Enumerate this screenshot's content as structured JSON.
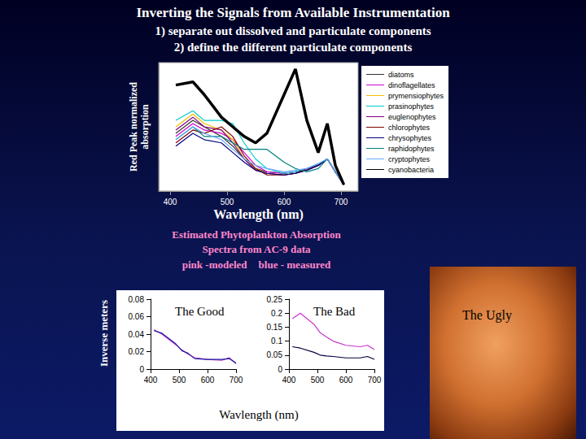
{
  "slide": {
    "title": "Inverting the Signals from Available Instrumentation",
    "lines": [
      "1) separate out dissolved and particulate components",
      "2) define the different particulate components"
    ],
    "caption": [
      "Estimated Phytoplankton Absorption",
      "Spectra from AC-9 data"
    ],
    "legend_note": [
      "pink -modeled",
      "blue - measured"
    ],
    "y_label": "Inverse meters",
    "x_label": "Wavlength (nm)",
    "photo_label": "The Ugly"
  },
  "chart_data": [
    {
      "type": "line",
      "x_label": "Wavlength (nm)",
      "y_label": "Red Peak normalized absorption",
      "x": [
        410,
        440,
        460,
        490,
        510,
        530,
        550,
        570,
        600,
        620,
        640,
        660,
        676,
        690,
        705
      ],
      "xlim": [
        380,
        730
      ],
      "xticks": [
        400,
        500,
        600,
        700
      ],
      "ylim": [
        0,
        4
      ],
      "tick_labels": "x",
      "grid": false,
      "legend": "right",
      "series": [
        {
          "name": "diatoms",
          "color": "#333333",
          "values": [
            1.8,
            2.2,
            2.0,
            1.7,
            1.4,
            1.0,
            0.7,
            0.6,
            0.55,
            0.6,
            0.65,
            0.8,
            1.0,
            0.6,
            0.2
          ]
        },
        {
          "name": "dinoflagellates",
          "color": "#cc00cc",
          "values": [
            1.7,
            2.1,
            1.9,
            1.8,
            1.6,
            1.2,
            0.8,
            0.6,
            0.55,
            0.6,
            0.7,
            0.8,
            1.0,
            0.6,
            0.2
          ]
        },
        {
          "name": "prymensiophytes",
          "color": "#f0c000",
          "values": [
            2.0,
            2.4,
            2.1,
            1.9,
            1.6,
            1.0,
            0.7,
            0.55,
            0.5,
            0.55,
            0.65,
            0.8,
            1.0,
            0.6,
            0.2
          ]
        },
        {
          "name": "prasinophytes",
          "color": "#00cccc",
          "values": [
            2.2,
            2.5,
            2.2,
            2.2,
            2.1,
            1.5,
            1.0,
            0.7,
            0.55,
            0.6,
            0.7,
            0.85,
            1.0,
            0.6,
            0.2
          ]
        },
        {
          "name": "euglenophytes",
          "color": "#800080",
          "values": [
            1.9,
            2.3,
            2.0,
            1.9,
            1.5,
            1.0,
            0.65,
            0.55,
            0.5,
            0.55,
            0.65,
            0.8,
            1.0,
            0.6,
            0.2
          ]
        },
        {
          "name": "chlorophytes",
          "color": "#800000",
          "values": [
            1.5,
            1.9,
            1.8,
            2.0,
            1.7,
            1.1,
            0.7,
            0.5,
            0.5,
            0.55,
            0.7,
            0.8,
            1.0,
            0.6,
            0.2
          ]
        },
        {
          "name": "chrysophytes",
          "color": "#000080",
          "values": [
            1.4,
            1.8,
            1.6,
            1.5,
            1.2,
            0.9,
            0.65,
            0.55,
            0.5,
            0.55,
            0.65,
            0.8,
            1.0,
            0.6,
            0.2
          ]
        },
        {
          "name": "raphidophytes",
          "color": "#008080",
          "values": [
            1.6,
            2.0,
            1.7,
            1.7,
            1.5,
            1.3,
            1.3,
            1.3,
            0.9,
            0.7,
            0.6,
            0.7,
            1.0,
            0.6,
            0.2
          ]
        },
        {
          "name": "cryptophytes",
          "color": "#66aaff",
          "values": [
            1.6,
            2.0,
            1.8,
            1.6,
            1.3,
            1.0,
            0.8,
            0.7,
            0.6,
            0.65,
            0.7,
            0.85,
            1.0,
            0.6,
            0.2
          ]
        },
        {
          "name": "cyanobacteria",
          "color": "#000000",
          "line_style": "bold",
          "values": [
            3.3,
            3.4,
            3.0,
            2.3,
            2.0,
            1.7,
            1.5,
            1.8,
            3.0,
            3.8,
            2.2,
            1.2,
            2.1,
            0.8,
            0.2
          ]
        }
      ]
    },
    {
      "type": "line",
      "title": "The Good",
      "x": [
        412,
        440,
        488,
        510,
        532,
        555,
        600,
        650,
        676,
        700
      ],
      "xlim": [
        400,
        700
      ],
      "xticks": [
        400,
        500,
        600,
        700
      ],
      "ylim": [
        0,
        0.08
      ],
      "yticks": [
        0,
        0.02,
        0.04,
        0.06,
        0.08
      ],
      "grid": false,
      "series": [
        {
          "color": "#cc33cc",
          "values": [
            0.045,
            0.04,
            0.028,
            0.022,
            0.017,
            0.013,
            0.011,
            0.01,
            0.013,
            0.006
          ]
        },
        {
          "color": "#1a1aa0",
          "values": [
            0.044,
            0.041,
            0.029,
            0.021,
            0.018,
            0.012,
            0.011,
            0.011,
            0.012,
            0.007
          ]
        }
      ]
    },
    {
      "type": "line",
      "title": "The Bad",
      "x": [
        412,
        440,
        488,
        510,
        532,
        555,
        600,
        650,
        676,
        700
      ],
      "xlim": [
        400,
        700
      ],
      "xticks": [
        400,
        500,
        600,
        700
      ],
      "ylim": [
        0,
        0.25
      ],
      "yticks": [
        0,
        0.05,
        0.1,
        0.15,
        0.2,
        0.25
      ],
      "grid": false,
      "series": [
        {
          "color": "#cc33cc",
          "values": [
            0.18,
            0.2,
            0.16,
            0.13,
            0.115,
            0.1,
            0.085,
            0.08,
            0.085,
            0.07
          ]
        },
        {
          "color": "#000040",
          "values": [
            0.08,
            0.075,
            0.06,
            0.05,
            0.047,
            0.045,
            0.04,
            0.04,
            0.045,
            0.035
          ]
        }
      ]
    }
  ]
}
